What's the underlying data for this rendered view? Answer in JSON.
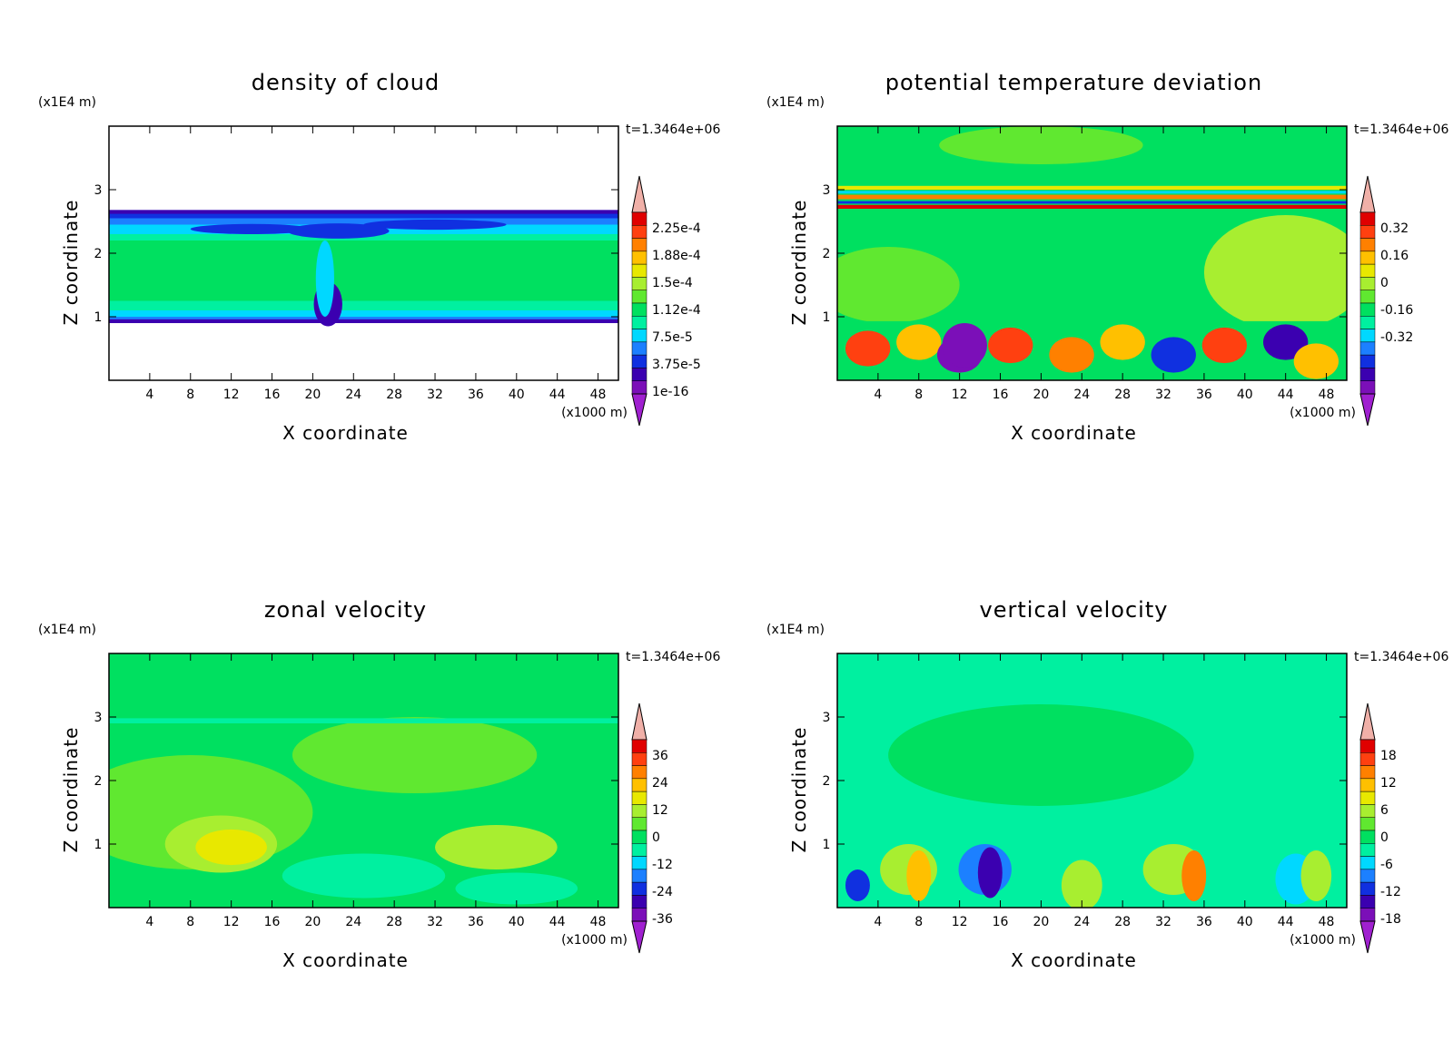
{
  "common": {
    "y_unit": "(x1E4 m)",
    "x_unit": "(x1000 m)",
    "xlabel": "X coordinate",
    "ylabel": "Z coordinate",
    "time": "t=1.3464e+06",
    "x_ticks": [
      4,
      8,
      12,
      16,
      20,
      24,
      28,
      32,
      36,
      40,
      44,
      48
    ],
    "y_ticks": [
      1,
      2,
      3
    ],
    "xlim": [
      0,
      50
    ],
    "ylim": [
      0,
      4
    ]
  },
  "chart_data": [
    {
      "type": "heatmap",
      "title": "density of cloud",
      "colorbar_labels": [
        "2.25e-4",
        "1.88e-4",
        "1.5e-4",
        "1.12e-4",
        "7.5e-5",
        "3.75e-5",
        "1e-16"
      ],
      "features": {
        "cloud_layer_z": [
          0.9,
          2.65
        ],
        "column_x": 21
      }
    },
    {
      "type": "heatmap",
      "title": "potential temperature deviation",
      "colorbar_labels": [
        "0.32",
        "0.16",
        "0",
        "-0.16",
        "-0.32"
      ]
    },
    {
      "type": "heatmap",
      "title": "zonal velocity",
      "colorbar_labels": [
        "36",
        "24",
        "12",
        "0",
        "-12",
        "-24",
        "-36"
      ]
    },
    {
      "type": "heatmap",
      "title": "vertical velocity",
      "colorbar_labels": [
        "18",
        "12",
        "6",
        "0",
        "-6",
        "-12",
        "-18"
      ]
    }
  ],
  "colors": {
    "scale": [
      "#7b0fb8",
      "#3b00b0",
      "#1030e0",
      "#1c80ff",
      "#00d8ff",
      "#00f0a0",
      "#00e060",
      "#60e830",
      "#a8ee30",
      "#e8e800",
      "#ffc000",
      "#ff8000",
      "#ff4010",
      "#e00000",
      "#f0b0a8"
    ]
  }
}
